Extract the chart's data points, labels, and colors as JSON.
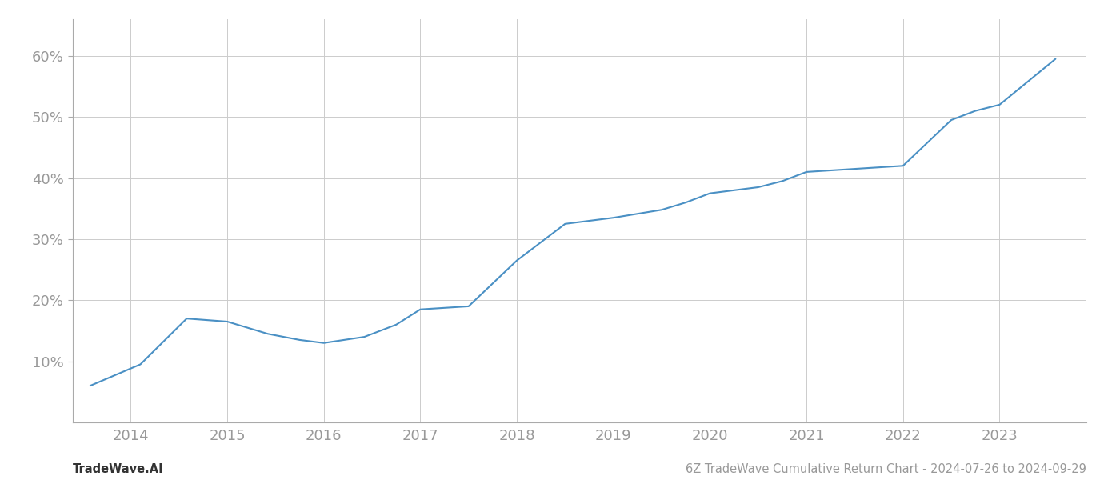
{
  "title": "",
  "footer_left": "TradeWave.AI",
  "footer_right": "6Z TradeWave Cumulative Return Chart - 2024-07-26 to 2024-09-29",
  "line_color": "#4a90c4",
  "background_color": "#ffffff",
  "grid_color": "#cccccc",
  "x_values": [
    2013.58,
    2014.1,
    2014.58,
    2015.0,
    2015.42,
    2015.75,
    2016.0,
    2016.42,
    2016.75,
    2017.0,
    2017.5,
    2018.0,
    2018.5,
    2019.0,
    2019.5,
    2019.75,
    2020.0,
    2020.5,
    2020.75,
    2021.0,
    2021.5,
    2022.0,
    2022.5,
    2022.75,
    2023.0,
    2023.58
  ],
  "y_values": [
    6.0,
    9.5,
    17.0,
    16.5,
    14.5,
    13.5,
    13.0,
    14.0,
    16.0,
    18.5,
    19.0,
    26.5,
    32.5,
    33.5,
    34.8,
    36.0,
    37.5,
    38.5,
    39.5,
    41.0,
    41.5,
    42.0,
    49.5,
    51.0,
    52.0,
    59.5
  ],
  "xlim": [
    2013.4,
    2023.9
  ],
  "ylim": [
    0,
    66
  ],
  "xticks": [
    2014,
    2015,
    2016,
    2017,
    2018,
    2019,
    2020,
    2021,
    2022,
    2023
  ],
  "yticks": [
    10,
    20,
    30,
    40,
    50,
    60
  ],
  "line_width": 1.5,
  "axis_label_color": "#999999",
  "spine_color": "#aaaaaa",
  "footer_fontsize": 10.5,
  "tick_fontsize": 13
}
